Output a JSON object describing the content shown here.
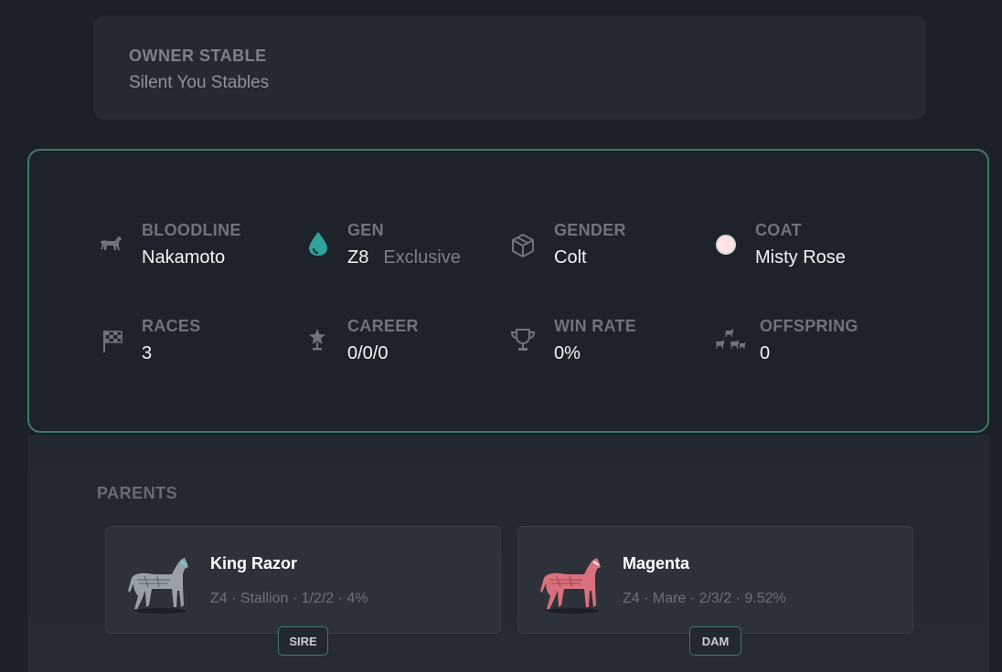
{
  "owner": {
    "label": "OWNER STABLE",
    "value": "Silent You Stables"
  },
  "stats": {
    "bloodline": {
      "label": "BLOODLINE",
      "value": "Nakamoto",
      "icon": "horse-icon"
    },
    "gen": {
      "label": "GEN",
      "value": "Z8",
      "sub": "Exclusive",
      "icon": "droplet-icon"
    },
    "gender": {
      "label": "GENDER",
      "value": "Colt",
      "icon": "cube-icon"
    },
    "coat": {
      "label": "COAT",
      "value": "Misty Rose",
      "color": "#ffe4e1",
      "icon": "coat-color-swatch"
    },
    "races": {
      "label": "RACES",
      "value": "3",
      "icon": "checkered-flag-icon"
    },
    "career": {
      "label": "CAREER",
      "value": "0/0/0",
      "icon": "star-trophy-icon"
    },
    "win_rate": {
      "label": "WIN RATE",
      "value": "0%",
      "icon": "trophy-cup-icon"
    },
    "offspring": {
      "label": "OFFSPRING",
      "value": "0",
      "icon": "horse-family-icon"
    }
  },
  "parents": {
    "label": "PARENTS",
    "sire": {
      "name": "King Razor",
      "info": "Z4 · Stallion · 1/2/2 · 4%",
      "role": "SIRE",
      "color": "#9aa0a8"
    },
    "dam": {
      "name": "Magenta",
      "info": "Z4 · Mare · 2/3/2 · 9.52%",
      "role": "DAM",
      "color": "#d9707e"
    }
  },
  "colors": {
    "accent": "#3f7a66",
    "gen_icon": "#2fa39a"
  }
}
